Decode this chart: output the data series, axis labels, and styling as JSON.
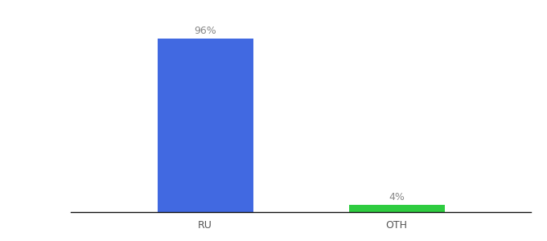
{
  "categories": [
    "RU",
    "OTH"
  ],
  "values": [
    96,
    4
  ],
  "bar_colors": [
    "#4169e1",
    "#2ecc40"
  ],
  "bar_labels": [
    "96%",
    "4%"
  ],
  "background_color": "#ffffff",
  "ylim": [
    0,
    108
  ],
  "label_fontsize": 9,
  "tick_fontsize": 9,
  "bar_width": 0.5,
  "label_color": "#888888",
  "tick_color": "#555555"
}
